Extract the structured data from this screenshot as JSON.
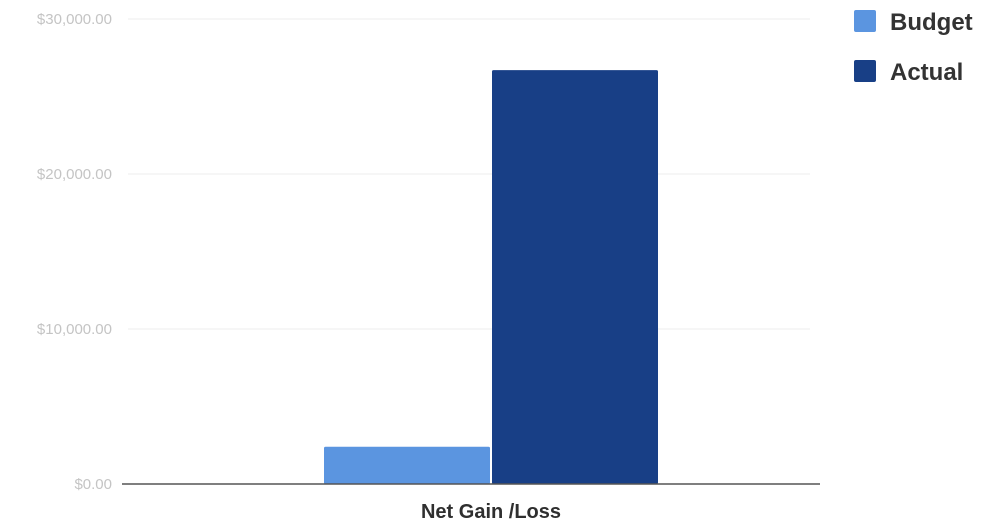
{
  "chart_data": {
    "type": "bar",
    "categories": [
      "Net Gain /Loss"
    ],
    "series": [
      {
        "name": "Budget",
        "values": [
          2400
        ],
        "color": "#5b95e0"
      },
      {
        "name": "Actual",
        "values": [
          26700
        ],
        "color": "#183f86"
      }
    ],
    "ylim": [
      0,
      30000
    ],
    "yticks": [
      {
        "value": 0,
        "label": "$0.00"
      },
      {
        "value": 10000,
        "label": "$10,000.00"
      },
      {
        "value": 20000,
        "label": "$20,000.00"
      },
      {
        "value": 30000,
        "label": "$30,000.00"
      }
    ],
    "grid": true,
    "legend_position": "top-right"
  }
}
